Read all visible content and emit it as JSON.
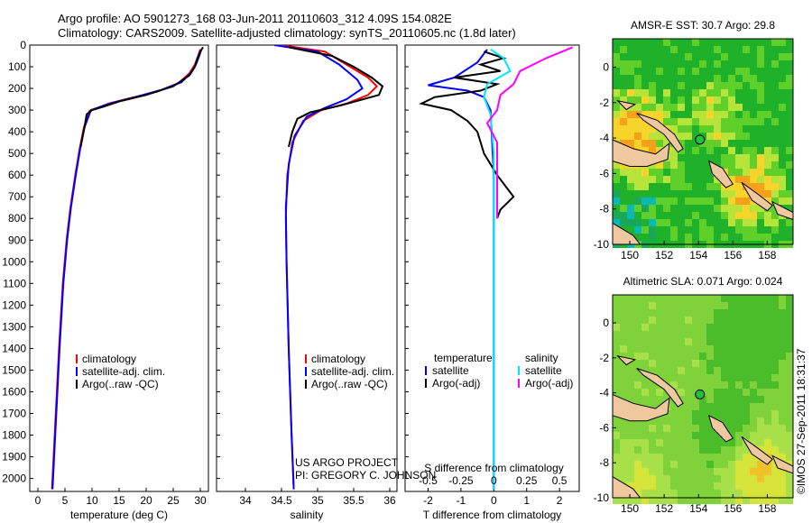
{
  "header": {
    "line1": "Argo profile: AO 5901273_168 03-Jun-2011 20110603_312 4.09S 154.082E",
    "line2": "Climatology: CARS2009. Satellite-adjusted climatology: synTS_20110605.nc (1.8d later)"
  },
  "side_label": "©IMOS 27-Sep-2011 18:31:37",
  "colors": {
    "climatology": "#ff0000",
    "satellite": "#0000ff",
    "argo": "#000000",
    "sal_satellite": "#00e5ff",
    "sal_argo": "#ff00ff"
  },
  "chart_data": [
    {
      "type": "line",
      "id": "temperature",
      "xlabel": "temperature (deg C)",
      "ylabel": "",
      "xlim": [
        -1.5,
        31.5
      ],
      "ylim": [
        2060,
        0
      ],
      "xticks": [
        0,
        5,
        10,
        15,
        20,
        25,
        30
      ],
      "yticks": [
        0,
        100,
        200,
        300,
        400,
        500,
        600,
        700,
        800,
        900,
        1000,
        1100,
        1200,
        1300,
        1400,
        1500,
        1600,
        1700,
        1800,
        1900,
        2000
      ],
      "legend": [
        "climatology",
        "satellite-adj. clim.",
        "Argo(..raw -QC)"
      ],
      "series": [
        {
          "name": "climatology",
          "color": "#ff0000",
          "points": [
            [
              30,
              20
            ],
            [
              29.6,
              50
            ],
            [
              29,
              90
            ],
            [
              28,
              130
            ],
            [
              26,
              175
            ],
            [
              22,
              215
            ],
            [
              17,
              245
            ],
            [
              13,
              270
            ],
            [
              9.5,
              305
            ],
            [
              8.5,
              380
            ],
            [
              7.7,
              480
            ],
            [
              6.9,
              600
            ],
            [
              6.0,
              750
            ],
            [
              5.3,
              900
            ],
            [
              4.6,
              1100
            ],
            [
              3.9,
              1400
            ],
            [
              3.2,
              1750
            ],
            [
              2.6,
              2050
            ]
          ]
        },
        {
          "name": "satellite-adj. clim.",
          "color": "#0000ff",
          "points": [
            [
              30.2,
              20
            ],
            [
              29.8,
              50
            ],
            [
              29.2,
              90
            ],
            [
              28.2,
              130
            ],
            [
              26.5,
              172
            ],
            [
              23,
              205
            ],
            [
              18,
              240
            ],
            [
              13.5,
              268
            ],
            [
              9.8,
              300
            ],
            [
              8.6,
              380
            ],
            [
              7.8,
              480
            ],
            [
              7.0,
              600
            ],
            [
              6.1,
              750
            ],
            [
              5.4,
              900
            ],
            [
              4.7,
              1100
            ],
            [
              4.0,
              1400
            ],
            [
              3.3,
              1750
            ],
            [
              2.7,
              2050
            ]
          ]
        },
        {
          "name": "Argo(..raw -QC)",
          "color": "#000000",
          "points": [
            [
              30.5,
              10
            ],
            [
              30,
              30
            ],
            [
              29.5,
              60
            ],
            [
              29,
              100
            ],
            [
              28,
              140
            ],
            [
              25,
              190
            ],
            [
              20,
              230
            ],
            [
              15,
              260
            ],
            [
              12,
              285
            ],
            [
              10,
              300
            ],
            [
              9,
              320
            ],
            [
              8.6,
              380
            ],
            [
              7.9,
              470
            ]
          ]
        }
      ]
    },
    {
      "type": "line",
      "id": "salinity",
      "xlabel": "salinity",
      "xlim": [
        33.6,
        36.1
      ],
      "ylim": [
        2060,
        0
      ],
      "xticks": [
        34,
        34.5,
        35,
        35.5,
        36
      ],
      "legend": [
        "climatology",
        "satellite-adj. clim.",
        "Argo(..raw -QC)"
      ],
      "annotation": {
        "line1": "US ARGO PROJECT",
        "line2": "PI: GREGORY C. JOHNSON"
      },
      "series": [
        {
          "name": "climatology",
          "color": "#ff0000",
          "points": [
            [
              34.5,
              0
            ],
            [
              35.1,
              30
            ],
            [
              35.4,
              90
            ],
            [
              35.7,
              150
            ],
            [
              35.82,
              190
            ],
            [
              35.7,
              230
            ],
            [
              35.4,
              270
            ],
            [
              35.05,
              300
            ],
            [
              34.8,
              350
            ],
            [
              34.65,
              450
            ],
            [
              34.58,
              600
            ],
            [
              34.56,
              800
            ],
            [
              34.57,
              1000
            ],
            [
              34.6,
              1400
            ],
            [
              34.64,
              1800
            ],
            [
              34.67,
              2050
            ]
          ]
        },
        {
          "name": "satellite-adj. clim.",
          "color": "#0000ff",
          "points": [
            [
              34.4,
              0
            ],
            [
              35.0,
              30
            ],
            [
              35.3,
              90
            ],
            [
              35.55,
              160
            ],
            [
              35.62,
              200
            ],
            [
              35.4,
              250
            ],
            [
              35.1,
              290
            ],
            [
              34.85,
              330
            ],
            [
              34.68,
              420
            ],
            [
              34.6,
              550
            ],
            [
              34.56,
              750
            ],
            [
              34.57,
              1000
            ],
            [
              34.6,
              1400
            ],
            [
              34.64,
              1800
            ],
            [
              34.67,
              2050
            ]
          ]
        },
        {
          "name": "Argo(..raw -QC)",
          "color": "#000000",
          "points": [
            [
              34.6,
              10
            ],
            [
              35.2,
              50
            ],
            [
              35.5,
              100
            ],
            [
              35.75,
              150
            ],
            [
              35.9,
              190
            ],
            [
              35.85,
              230
            ],
            [
              35.3,
              280
            ],
            [
              34.9,
              310
            ],
            [
              34.72,
              340
            ],
            [
              34.65,
              400
            ],
            [
              34.6,
              470
            ]
          ]
        }
      ]
    },
    {
      "type": "line",
      "id": "difference",
      "xlabel": "T difference from climatology",
      "xlabel_top": "S difference from climatology",
      "xlim": [
        -2.7,
        2.6
      ],
      "ylim": [
        2060,
        0
      ],
      "xticks": [
        -2,
        -1,
        0,
        1,
        2
      ],
      "xticks_sal": [
        "-0.5",
        "-0.25",
        "0",
        "0.25",
        "0.5"
      ],
      "xticks_sal_pos": [
        -2,
        -1,
        0,
        1,
        2
      ],
      "legend": {
        "temperature_title": "temperature",
        "salinity_title": "salinity",
        "items": [
          "satellite",
          "Argo(-adj)",
          "satellite",
          "Argo(-adj)"
        ]
      },
      "series": [
        {
          "name": "temperature satellite",
          "color": "#0000ff",
          "points": [
            [
              -0.2,
              20
            ],
            [
              -0.5,
              80
            ],
            [
              -1.2,
              150
            ],
            [
              -2.0,
              185
            ],
            [
              -0.8,
              210
            ],
            [
              -0.3,
              240
            ],
            [
              -0.1,
              300
            ],
            [
              0,
              600
            ],
            [
              0,
              1000
            ],
            [
              0,
              1500
            ],
            [
              0,
              2050
            ]
          ]
        },
        {
          "name": "temperature Argo(-adj)",
          "color": "#000000",
          "points": [
            [
              -0.3,
              30
            ],
            [
              0.3,
              60
            ],
            [
              -0.4,
              90
            ],
            [
              0.2,
              120
            ],
            [
              -1.2,
              150
            ],
            [
              0.1,
              180
            ],
            [
              -0.4,
              210
            ],
            [
              -1.8,
              240
            ],
            [
              -2.2,
              270
            ],
            [
              -1.3,
              300
            ],
            [
              -0.8,
              350
            ],
            [
              -0.5,
              400
            ],
            [
              -0.3,
              500
            ],
            [
              0.1,
              600
            ],
            [
              0.6,
              700
            ],
            [
              0.2,
              760
            ],
            [
              0.1,
              800
            ]
          ]
        },
        {
          "name": "salinity satellite",
          "color": "#00e5ff",
          "points": [
            [
              -0.1,
              20
            ],
            [
              0.3,
              60
            ],
            [
              0.5,
              120
            ],
            [
              -0.2,
              180
            ],
            [
              -0.3,
              240
            ],
            [
              -0.1,
              320
            ],
            [
              0,
              500
            ],
            [
              0,
              900
            ],
            [
              0,
              1400
            ],
            [
              0,
              2050
            ]
          ]
        },
        {
          "name": "salinity Argo(-adj)",
          "color": "#ff00ff",
          "points": [
            [
              2.4,
              10
            ],
            [
              1.6,
              60
            ],
            [
              0.8,
              120
            ],
            [
              0.6,
              180
            ],
            [
              0.2,
              230
            ],
            [
              0.1,
              300
            ],
            [
              -0.2,
              360
            ],
            [
              0.1,
              450
            ],
            [
              0.1,
              600
            ],
            [
              0.1,
              800
            ]
          ]
        }
      ]
    },
    {
      "type": "heatmap",
      "id": "sst_map",
      "title": "AMSR-E SST: 30.7 Argo: 29.8",
      "xticks": [
        150,
        152,
        154,
        156,
        158
      ],
      "yticks": [
        0,
        -2,
        -4,
        -6,
        -8,
        -10
      ],
      "xlim": [
        149,
        159.5
      ],
      "ylim": [
        -10,
        1.6
      ],
      "argo_position": [
        154.08,
        -4.09
      ]
    },
    {
      "type": "heatmap",
      "id": "sla_map",
      "title": "Altimetric SLA: 0.071 Argo: 0.024",
      "xticks": [
        150,
        152,
        154,
        156,
        158
      ],
      "yticks": [
        0,
        -2,
        -4,
        -6,
        -8,
        -10
      ],
      "xlim": [
        149,
        159.5
      ],
      "ylim": [
        -10,
        1.6
      ],
      "argo_position": [
        154.08,
        -4.09
      ]
    }
  ]
}
